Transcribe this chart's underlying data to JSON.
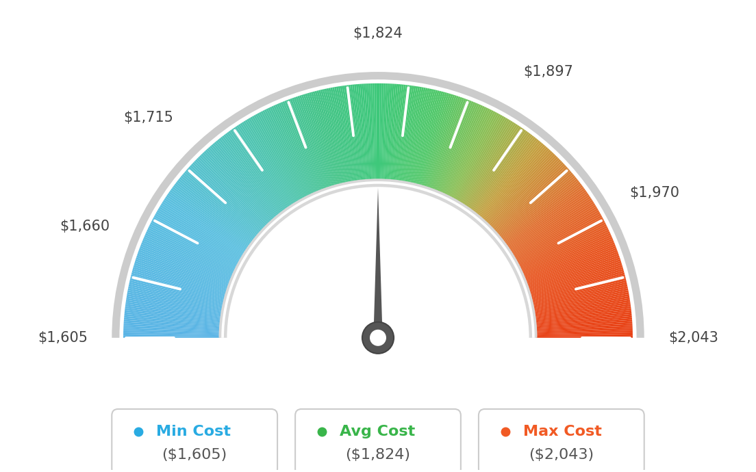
{
  "min_val": 1605,
  "max_val": 2043,
  "avg_val": 1824,
  "label_values": [
    1605,
    1660,
    1715,
    1824,
    1897,
    1970,
    2043
  ],
  "min_cost_label": "Min Cost",
  "avg_cost_label": "Avg Cost",
  "max_cost_label": "Max Cost",
  "min_cost_display": "($1,605)",
  "avg_cost_display": "($1,824)",
  "max_cost_display": "($2,043)",
  "min_dot_color": "#29abe2",
  "avg_dot_color": "#39b54a",
  "max_dot_color": "#f15a24",
  "background_color": "#ffffff",
  "needle_color": "#555555",
  "tick_color": "#ffffff",
  "label_fontsize": 15,
  "legend_label_fontsize": 16,
  "legend_value_fontsize": 16,
  "color_stops": [
    [
      0.0,
      "#5ab4e5"
    ],
    [
      0.18,
      "#5abfe0"
    ],
    [
      0.32,
      "#4ec4b0"
    ],
    [
      0.42,
      "#44c488"
    ],
    [
      0.5,
      "#3ec87a"
    ],
    [
      0.58,
      "#52c86a"
    ],
    [
      0.65,
      "#8abf55"
    ],
    [
      0.72,
      "#c4a040"
    ],
    [
      0.8,
      "#e07030"
    ],
    [
      0.88,
      "#e85520"
    ],
    [
      1.0,
      "#e84015"
    ]
  ]
}
